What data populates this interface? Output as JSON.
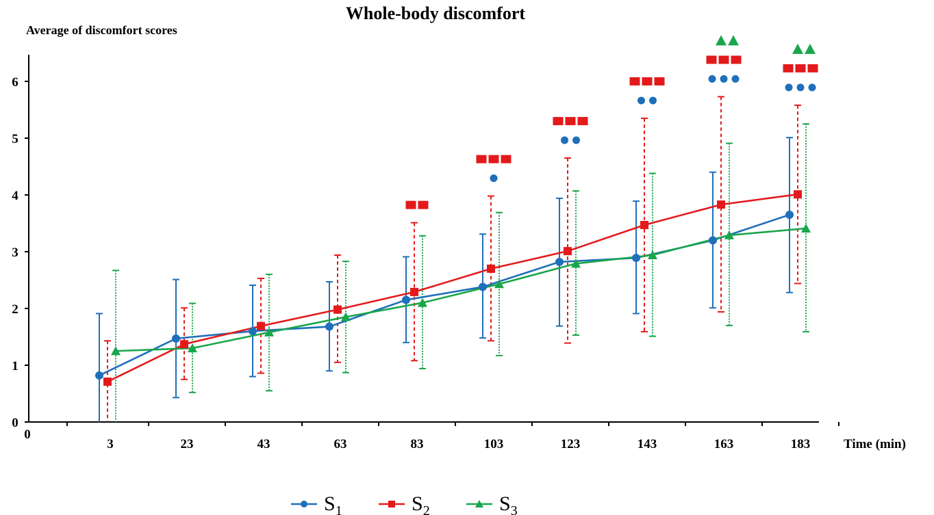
{
  "chart_data": {
    "type": "line",
    "title": "Whole-body discomfort",
    "ylabel": "Average of discomfort scores",
    "xlabel": "Time (min)",
    "origin_label": "0",
    "categories": [
      "3",
      "23",
      "43",
      "63",
      "83",
      "103",
      "123",
      "143",
      "163",
      "183"
    ],
    "ylim": [
      0,
      6.5
    ],
    "yticks": [
      0,
      1,
      2,
      3,
      4,
      5,
      6
    ],
    "grid": false,
    "legend_position": "bottom",
    "series": [
      {
        "name": "S",
        "subscript": "1",
        "color": "#1f6fba",
        "marker": "circle",
        "line_style": "solid",
        "values": [
          0.82,
          1.47,
          1.6,
          1.68,
          2.15,
          2.38,
          2.82,
          2.89,
          3.2,
          3.65
        ],
        "err_low": [
          0.0,
          0.43,
          0.8,
          0.9,
          1.4,
          1.48,
          1.69,
          1.91,
          2.01,
          2.28
        ],
        "err_high": [
          1.91,
          2.51,
          2.41,
          2.47,
          2.91,
          3.31,
          3.94,
          3.89,
          4.4,
          5.01
        ],
        "significance": [
          "",
          "",
          "",
          "",
          "",
          "●",
          "●●",
          "●●",
          "●●●",
          "●●●"
        ]
      },
      {
        "name": "S",
        "subscript": "2",
        "color": "#e31a1c",
        "marker": "square",
        "line_style": "solid",
        "error_style": "dashed",
        "values": [
          0.71,
          1.37,
          1.69,
          1.98,
          2.29,
          2.7,
          3.01,
          3.47,
          3.83,
          4.01
        ],
        "err_low": [
          0.0,
          0.75,
          0.86,
          1.05,
          1.08,
          1.43,
          1.39,
          1.59,
          1.94,
          2.44
        ],
        "err_high": [
          1.43,
          2.01,
          2.53,
          2.94,
          3.51,
          3.98,
          4.65,
          5.35,
          5.73,
          5.58
        ],
        "significance": [
          "",
          "",
          "",
          "",
          "■■",
          "■■■",
          "■■■",
          "■■■",
          "■■■",
          "■■■"
        ]
      },
      {
        "name": "S",
        "subscript": "3",
        "color": "#19a64b",
        "marker": "triangle",
        "line_style": "solid",
        "error_style": "dotted",
        "values": [
          1.25,
          1.3,
          1.58,
          1.85,
          2.1,
          2.43,
          2.79,
          2.94,
          3.29,
          3.41
        ],
        "err_low": [
          0.0,
          0.52,
          0.55,
          0.87,
          0.94,
          1.17,
          1.53,
          1.51,
          1.7,
          1.59
        ],
        "err_high": [
          2.67,
          2.09,
          2.6,
          2.83,
          3.28,
          3.69,
          4.07,
          4.38,
          4.91,
          5.25
        ],
        "significance": [
          "",
          "",
          "",
          "",
          "",
          "",
          "",
          "",
          "▲▲",
          "▲▲"
        ]
      }
    ]
  }
}
